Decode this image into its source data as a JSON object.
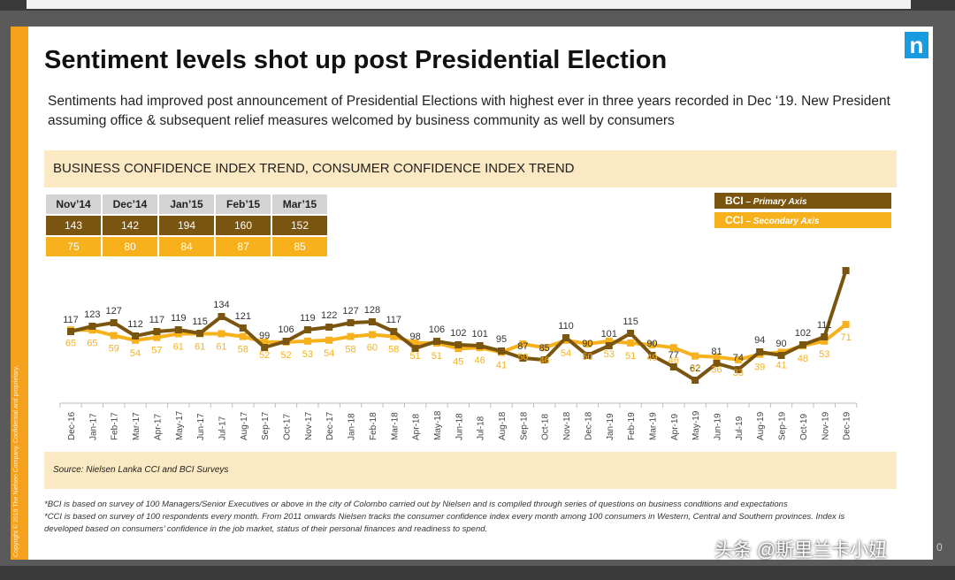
{
  "slide": {
    "title": "Sentiment levels shot up post Presidential Election",
    "subtitle": "Sentiments had improved post announcement of Presidential Elections with highest ever in three years recorded in Dec ‘19.  New President assuming office & subsequent relief measures welcomed by business community as well by consumers",
    "chart_header": "BUSINESS CONFIDENCE INDEX TREND, CONSUMER CONFIDENCE INDEX TREND",
    "logo": "n",
    "sidebar_text": "Copyright © 2019 The Nielsen Company. Confidential and proprietary.",
    "source": "Source: Nielsen Lanka CCI and BCI Surveys",
    "note1": "*BCI is based on survey of 100  Managers/Senior Executives or above in the city of Colombo carried out by Nielsen and is compiled through series of questions on business conditions and expectations",
    "note2": "*CCI is based on survey of 100 respondents every month. From 2011 onwards Nielsen tracks the consumer confidence index every month among 100 consumers in Western, Central  and Southern provinces. Index is developed based on consumers’ confidence in the job market, status of their personal finances and readiness to spend.",
    "watermark": "头条 @斯里兰卡小妞",
    "page_number": "0"
  },
  "history_table": {
    "months": [
      "Nov’14",
      "Dec’14",
      "Jan’15",
      "Feb’15",
      "Mar’15"
    ],
    "bci": [
      "143",
      "142",
      "194",
      "160",
      "152"
    ],
    "cci": [
      "75",
      "80",
      "84",
      "87",
      "85"
    ]
  },
  "legend": {
    "bci_label": "BCI",
    "bci_axis": " – Primary Axis",
    "cci_label": "CCI",
    "cci_axis": " – Secondary Axis"
  },
  "colors": {
    "bci": "#7a5510",
    "cci": "#f6b11c",
    "accent": "#f4a21d",
    "band": "#fbe9c3"
  },
  "chart_data": {
    "type": "line",
    "categories": [
      "Dec-16",
      "Jan-17",
      "Feb-17",
      "Mar-17",
      "Apr-17",
      "May-17",
      "Jun-17",
      "Jul-17",
      "Aug-17",
      "Sep-17",
      "Oct-17",
      "Nov-17",
      "Dec-17",
      "Jan-18",
      "Feb-18",
      "Mar-18",
      "Apr-18",
      "May-18",
      "Jun-18",
      "Jul-18",
      "Aug-18",
      "Sep-18",
      "Oct-18",
      "Nov-18",
      "Dec-18",
      "Jan-19",
      "Feb-19",
      "Mar-19",
      "Apr-19",
      "May-19",
      "Jun-19",
      "Jul-19",
      "Aug-19",
      "Sep-19",
      "Oct-19",
      "Nov-19",
      "Dec-19"
    ],
    "series": [
      {
        "name": "BCI",
        "axis": "primary",
        "values": [
          117,
          123,
          127,
          112,
          117,
          119,
          115,
          134,
          121,
          99,
          106,
          119,
          122,
          127,
          128,
          117,
          98,
          106,
          102,
          101,
          95,
          87,
          85,
          110,
          90,
          101,
          115,
          90,
          77,
          62,
          81,
          74,
          94,
          90,
          102,
          111,
          186
        ]
      },
      {
        "name": "CCI",
        "axis": "secondary",
        "values": [
          65,
          65,
          59,
          54,
          57,
          61,
          61,
          61,
          58,
          52,
          52,
          53,
          54,
          58,
          60,
          58,
          51,
          51,
          45,
          46,
          41,
          50,
          46,
          54,
          50,
          53,
          51,
          49,
          46,
          37,
          36,
          33,
          39,
          41,
          48,
          53,
          71
        ]
      }
    ],
    "title": "BUSINESS CONFIDENCE INDEX TREND, CONSUMER CONFIDENCE INDEX TREND",
    "xlabel": "",
    "ylabel": ""
  }
}
